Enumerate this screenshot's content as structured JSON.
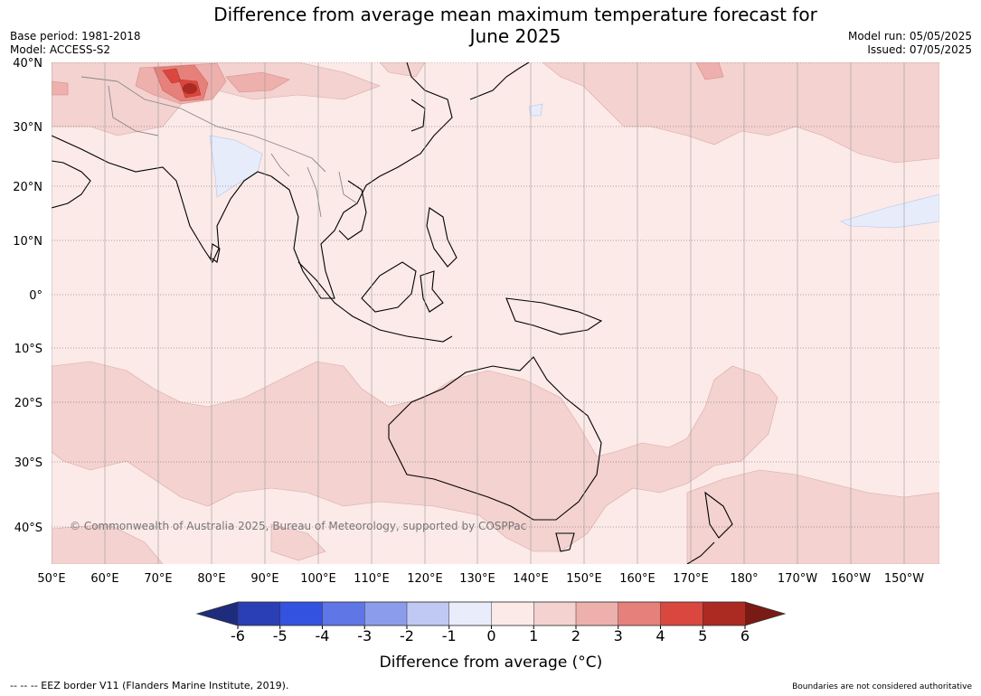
{
  "header": {
    "title_line1": "Difference from average mean maximum temperature forecast for",
    "title_line2": "June 2025",
    "base_period": "Base period: 1981-2018",
    "model": "Model: ACCESS-S2",
    "model_run": "Model run: 05/05/2025",
    "issued": "Issued: 07/05/2025"
  },
  "map": {
    "copyright": "© Commonwealth of Australia 2025, Bureau of Meteorology, supported by COSPPac",
    "lat_labels": [
      "40°N",
      "30°N",
      "20°N",
      "10°N",
      "0°",
      "10°S",
      "20°S",
      "30°S",
      "40°S"
    ],
    "lon_labels": [
      "50°E",
      "60°E",
      "70°E",
      "80°E",
      "90°E",
      "100°E",
      "110°E",
      "120°E",
      "130°E",
      "140°E",
      "150°E",
      "160°E",
      "170°E",
      "180°",
      "170°W",
      "160°W",
      "150°W"
    ],
    "colors": {
      "ocean_base": "#fbeae8",
      "warm_1_2": "#f3d2d0",
      "warm_2_3": "#eeb0ad",
      "warm_3_4": "#e6807a",
      "warm_4_5": "#d9473e",
      "cool_0_m1": "#e7ecfb",
      "land_outline": "#000000",
      "border": "#888888",
      "grid": "#555555"
    }
  },
  "legend": {
    "title": "Difference from average (°C)",
    "ticks": [
      "-6",
      "-5",
      "-4",
      "-3",
      "-2",
      "-1",
      "0",
      "1",
      "2",
      "3",
      "4",
      "5",
      "6"
    ],
    "colors": [
      "#1f2c7d",
      "#2a3fb5",
      "#3452e0",
      "#5f76e6",
      "#8c9ced",
      "#c0c8f4",
      "#e8ecfb",
      "#fbeae8",
      "#f3d2d0",
      "#eeb0ad",
      "#e6807a",
      "#d9473e",
      "#ab2a22",
      "#7a1a15"
    ]
  },
  "footer": {
    "eez_note": "--  --  -- EEZ border V11 (Flanders Marine Institute, 2019).",
    "disclaimer": "Boundaries are not considered authoritative"
  }
}
